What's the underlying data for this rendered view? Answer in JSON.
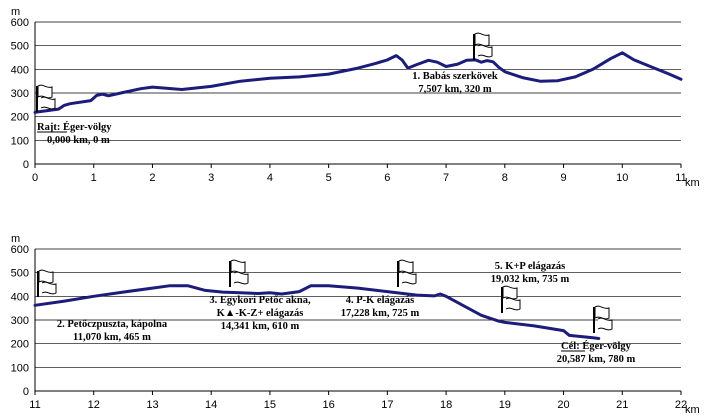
{
  "colors": {
    "line": "#1c1c7a",
    "grid": "#000000",
    "axis": "#000000",
    "flag": "#000000"
  },
  "icons": {
    "checkpoint": "flag-icon"
  },
  "chart_data": [
    {
      "type": "line",
      "title": "",
      "xlabel": "km",
      "ylabel": "m",
      "xlim": [
        0,
        11
      ],
      "ylim": [
        0,
        600
      ],
      "xticks": [
        "0",
        "1",
        "2",
        "3",
        "4",
        "5",
        "6",
        "7",
        "8",
        "9",
        "10",
        "11"
      ],
      "yticks": [
        "0",
        "100",
        "200",
        "300",
        "400",
        "500",
        "600"
      ],
      "grid": "horizontal",
      "series": [
        {
          "x": [
            0,
            0.05,
            0.4,
            0.5,
            0.6,
            0.95,
            1.05,
            1.15,
            1.25,
            1.5,
            1.8,
            2.0,
            2.5,
            3.0,
            3.5,
            4.0,
            4.5,
            5.0,
            5.5,
            5.8,
            6.0,
            6.15,
            6.25,
            6.35,
            6.5,
            6.7,
            6.85,
            7.0,
            7.2,
            7.35,
            7.5,
            7.6,
            7.7,
            7.8,
            7.9,
            8.0,
            8.3,
            8.6,
            8.9,
            9.2,
            9.5,
            9.8,
            10.0,
            10.2,
            10.5,
            10.8,
            11.0
          ],
          "y": [
            218,
            220,
            232,
            248,
            255,
            268,
            290,
            295,
            288,
            302,
            318,
            325,
            315,
            328,
            350,
            362,
            368,
            380,
            405,
            425,
            440,
            458,
            440,
            405,
            420,
            438,
            430,
            412,
            422,
            438,
            440,
            430,
            437,
            432,
            408,
            390,
            365,
            350,
            352,
            368,
            400,
            445,
            470,
            440,
            410,
            380,
            358
          ]
        }
      ],
      "annotations": [
        {
          "lines": [
            "Rajt: Éger-völgy",
            "0,000 km, 0 m"
          ],
          "underline_word": "Rajt:"
        },
        {
          "lines": [
            "1. Babás szerkövek",
            "7,507 km, 320 m"
          ]
        }
      ]
    },
    {
      "type": "line",
      "title": "",
      "xlabel": "km",
      "ylabel": "m",
      "xlim": [
        11,
        22
      ],
      "ylim": [
        0,
        600
      ],
      "xticks": [
        "11",
        "12",
        "13",
        "14",
        "15",
        "16",
        "17",
        "18",
        "19",
        "20",
        "21",
        "22"
      ],
      "yticks": [
        "0",
        "100",
        "200",
        "300",
        "400",
        "500",
        "600"
      ],
      "grid": "horizontal",
      "series": [
        {
          "x": [
            11.0,
            11.5,
            12.0,
            12.5,
            13.0,
            13.3,
            13.6,
            13.9,
            14.2,
            14.5,
            14.8,
            15.0,
            15.2,
            15.5,
            15.7,
            16.0,
            16.5,
            17.0,
            17.5,
            17.8,
            17.9,
            18.0,
            18.3,
            18.6,
            18.9,
            19.0,
            19.5,
            20.0,
            20.1,
            20.5,
            20.6
          ],
          "y": [
            362,
            380,
            400,
            418,
            435,
            445,
            445,
            425,
            418,
            415,
            412,
            415,
            410,
            420,
            445,
            445,
            435,
            420,
            405,
            402,
            410,
            400,
            360,
            320,
            295,
            290,
            275,
            255,
            235,
            225,
            222
          ]
        }
      ],
      "annotations": [
        {
          "lines": [
            "2. Petőczpuszta, kápolna",
            "11,070 km, 465 m"
          ]
        },
        {
          "lines": [
            "3. Egykori Petőc akna,",
            "K▲-K-Z+ elágazás",
            "14,341 km, 610 m"
          ]
        },
        {
          "lines": [
            "4. P-K elágazás",
            "17,228 km, 725 m"
          ]
        },
        {
          "lines": [
            "5. K+P elágazás",
            "19,032 km, 735 m"
          ]
        },
        {
          "lines": [
            "Cél: Éger-völgy",
            "20,587 km, 780 m"
          ],
          "underline_word": "Cél:"
        }
      ]
    }
  ]
}
